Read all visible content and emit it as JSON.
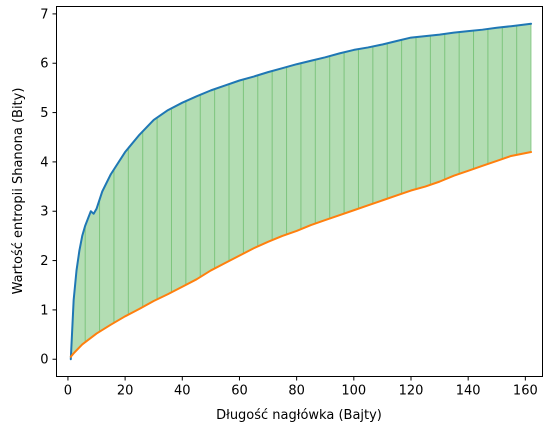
{
  "chart_data": {
    "type": "area",
    "title": "",
    "xlabel": "Długość nagłówka (Bajty)",
    "ylabel": "Wartość entropii Shanona (Bity)",
    "xlim": [
      -4,
      166
    ],
    "ylim": [
      -0.35,
      7.15
    ],
    "xticks": [
      0,
      20,
      40,
      60,
      80,
      100,
      120,
      140,
      160
    ],
    "yticks": [
      0,
      1,
      2,
      3,
      4,
      5,
      6,
      7
    ],
    "grid": false,
    "legend": "none",
    "colors": {
      "upper_line": "#1f77b4",
      "lower_line": "#ff7f0e",
      "fill": "#2ca02c"
    },
    "series": [
      {
        "x": [
          1,
          2,
          3,
          4,
          5,
          6,
          7,
          8,
          9,
          10,
          12,
          15,
          20,
          25,
          30,
          35,
          40,
          45,
          50,
          55,
          60,
          65,
          70,
          75,
          80,
          85,
          90,
          95,
          100,
          105,
          110,
          115,
          120,
          125,
          130,
          135,
          140,
          145,
          150,
          155,
          162
        ],
        "values": [
          0.0,
          1.2,
          1.8,
          2.2,
          2.5,
          2.7,
          2.85,
          3.0,
          2.95,
          3.05,
          3.4,
          3.75,
          4.2,
          4.55,
          4.85,
          5.05,
          5.2,
          5.33,
          5.45,
          5.55,
          5.65,
          5.73,
          5.82,
          5.9,
          5.98,
          6.05,
          6.12,
          6.2,
          6.27,
          6.32,
          6.38,
          6.45,
          6.52,
          6.55,
          6.58,
          6.62,
          6.65,
          6.68,
          6.72,
          6.75,
          6.8
        ]
      },
      {
        "x": [
          1,
          2,
          5,
          10,
          15,
          20,
          25,
          30,
          35,
          40,
          45,
          50,
          55,
          60,
          65,
          70,
          75,
          80,
          85,
          90,
          95,
          100,
          105,
          110,
          115,
          120,
          125,
          130,
          135,
          140,
          145,
          150,
          155,
          162
        ],
        "values": [
          0.05,
          0.12,
          0.3,
          0.52,
          0.7,
          0.87,
          1.02,
          1.18,
          1.32,
          1.47,
          1.62,
          1.8,
          1.95,
          2.1,
          2.25,
          2.38,
          2.5,
          2.6,
          2.72,
          2.82,
          2.92,
          3.02,
          3.12,
          3.22,
          3.32,
          3.42,
          3.5,
          3.6,
          3.72,
          3.82,
          3.92,
          4.02,
          4.12,
          4.2
        ]
      }
    ]
  }
}
